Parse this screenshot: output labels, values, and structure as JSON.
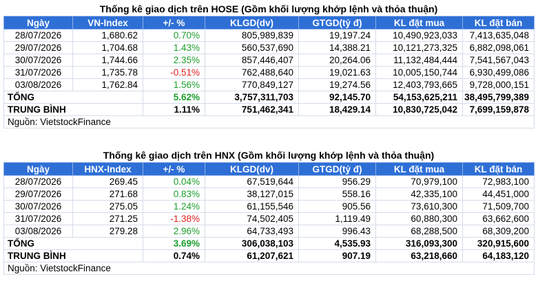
{
  "hose": {
    "title": "Thống kê giao dịch trên HOSE (Gồm khối lượng khớp lệnh và thỏa thuận)",
    "headers": [
      "Ngày",
      "VN-Index",
      "+/- %",
      "KLGD(dv)",
      "GTGD(tỷ đ)",
      "KL đặt mua",
      "KL đặt bán"
    ],
    "rows": [
      [
        "28/07/2026",
        "1,680.62",
        "0.70%",
        "805,989,839",
        "19,197.24",
        "10,490,923,033",
        "7,413,635,048"
      ],
      [
        "29/07/2026",
        "1,704.68",
        "1.43%",
        "560,537,690",
        "14,388.21",
        "10,121,273,325",
        "6,882,098,061"
      ],
      [
        "30/07/2026",
        "1,744.66",
        "2.35%",
        "857,446,407",
        "20,264.06",
        "11,132,484,444",
        "7,541,567,043"
      ],
      [
        "31/07/2026",
        "1,735.78",
        "-0.51%",
        "762,488,640",
        "19,021.63",
        "10,005,150,744",
        "6,930,499,086"
      ],
      [
        "03/08/2026",
        "1,762.84",
        "1.56%",
        "770,849,127",
        "19,274.56",
        "12,403,793,665",
        "9,728,000,151"
      ]
    ],
    "total": [
      "TỔNG",
      "",
      "5.62%",
      "3,757,311,703",
      "92,145.70",
      "54,153,625,211",
      "38,495,799,389"
    ],
    "average": [
      "TRUNG BÌNH",
      "",
      "1.11%",
      "751,462,341",
      "18,429.14",
      "10,830,725,042",
      "7,699,159,878"
    ],
    "source": "Nguồn: VietstockFinance"
  },
  "hnx": {
    "title": "Thống kê giao dịch trên HNX (Gồm khối lượng khớp lệnh và thỏa thuận)",
    "headers": [
      "Ngày",
      "HNX-Index",
      "+/- %",
      "KLGD(dv)",
      "GTGD(tỷ đ)",
      "KL đặt mua",
      "KL đặt bán"
    ],
    "rows": [
      [
        "28/07/2026",
        "269.45",
        "0.04%",
        "67,519,644",
        "956.29",
        "70,979,100",
        "72,983,100"
      ],
      [
        "29/07/2026",
        "271.68",
        "0.83%",
        "38,127,015",
        "558.16",
        "42,335,100",
        "44,451,000"
      ],
      [
        "30/07/2026",
        "275.05",
        "1.24%",
        "61,155,546",
        "905.56",
        "73,610,300",
        "71,509,700"
      ],
      [
        "31/07/2026",
        "271.25",
        "-1.38%",
        "74,502,405",
        "1,119.49",
        "60,880,300",
        "63,662,600"
      ],
      [
        "03/08/2026",
        "279.28",
        "2.96%",
        "64,733,493",
        "996.43",
        "68,288,500",
        "68,309,200"
      ]
    ],
    "total": [
      "TỔNG",
      "",
      "3.69%",
      "306,038,103",
      "4,535.93",
      "316,093,300",
      "320,915,600"
    ],
    "average": [
      "TRUNG BÌNH",
      "",
      "0.74%",
      "61,207,621",
      "907.19",
      "63,218,660",
      "64,183,120"
    ],
    "source": "Nguồn: VietstockFinance"
  },
  "colors": {
    "header_bg": "#2e6fd6",
    "positive": "#1c9e2c",
    "negative": "#e02020"
  }
}
